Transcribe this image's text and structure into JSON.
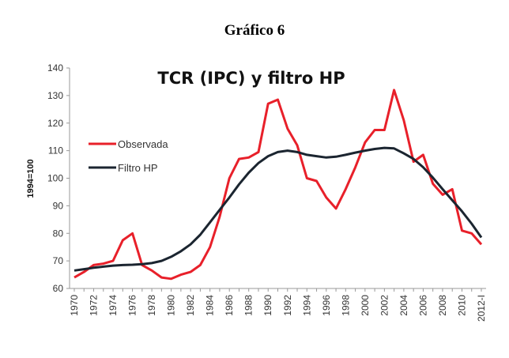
{
  "figure_title": "Gráfico 6",
  "chart_data": {
    "type": "line",
    "title": "TCR (IPC) y filtro HP",
    "xlabel": "",
    "ylabel": "1994=100",
    "ylim": [
      60,
      140
    ],
    "yticks": [
      60,
      70,
      80,
      90,
      100,
      110,
      120,
      130,
      140
    ],
    "grid": false,
    "legend": "left",
    "x": [
      1970,
      1971,
      1972,
      1973,
      1974,
      1975,
      1976,
      1977,
      1978,
      1979,
      1980,
      1981,
      1982,
      1983,
      1984,
      1985,
      1986,
      1987,
      1988,
      1989,
      1990,
      1991,
      1992,
      1993,
      1994,
      1995,
      1996,
      1997,
      1998,
      1999,
      2000,
      2001,
      2002,
      2003,
      2004,
      2005,
      2006,
      2007,
      2008,
      2009,
      2010,
      2011,
      2012
    ],
    "xtick_labels": [
      "1970",
      "1972",
      "1974",
      "1976",
      "1978",
      "1980",
      "1982",
      "1984",
      "1986",
      "1988",
      "1990",
      "1992",
      "1994",
      "1996",
      "1998",
      "2000",
      "2002",
      "2004",
      "2006",
      "2008",
      "2010",
      "2012-I"
    ],
    "series": [
      {
        "name": "Observada",
        "color": "#e8202a",
        "values": [
          64,
          66,
          68.5,
          69,
          70,
          77.5,
          80,
          68.5,
          66.5,
          64,
          63.5,
          65,
          66,
          68.5,
          75,
          86,
          100,
          107,
          107.5,
          109.5,
          127,
          128.5,
          118,
          112,
          100,
          99,
          93,
          89,
          96,
          104,
          113,
          117.5,
          117.5,
          132,
          121,
          106,
          108.5,
          98,
          94,
          96,
          81,
          80,
          76
        ]
      },
      {
        "name": "Filtro HP",
        "color": "#1b2530",
        "values": [
          66.5,
          67,
          67.5,
          67.9,
          68.3,
          68.5,
          68.6,
          68.8,
          69.2,
          70,
          71.5,
          73.5,
          76,
          79.5,
          84,
          88.5,
          93,
          97.8,
          102,
          105.5,
          108,
          109.5,
          110,
          109.5,
          108.5,
          108,
          107.5,
          107.8,
          108.5,
          109.3,
          110,
          110.6,
          111,
          110.8,
          109,
          107,
          104,
          100.2,
          96,
          92,
          88,
          83.5,
          78.5
        ]
      }
    ]
  }
}
